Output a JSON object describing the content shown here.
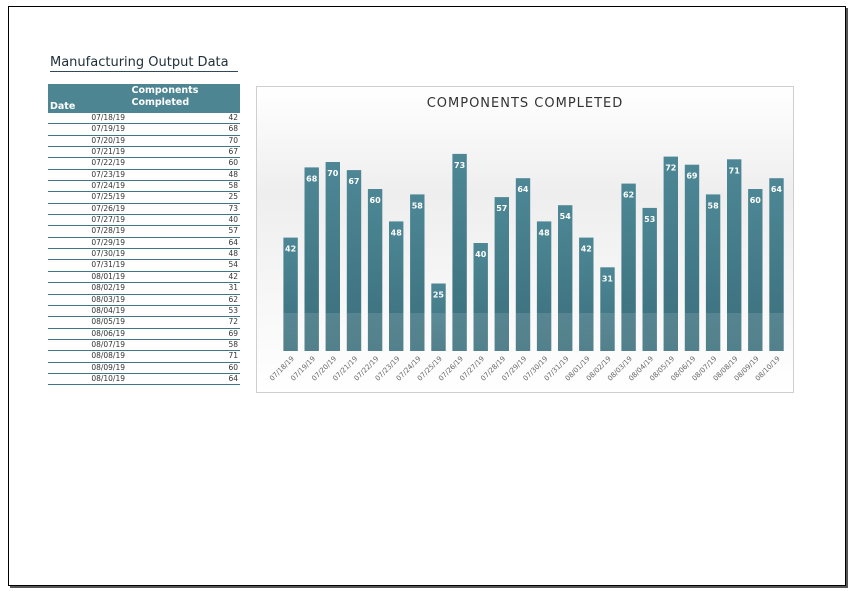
{
  "title": "Manufacturing Output Data",
  "table": {
    "headers": {
      "date": "Date",
      "components_line1": "Components",
      "components_line2": "Completed"
    },
    "rows": [
      {
        "date": "07/18/19",
        "value": "42"
      },
      {
        "date": "07/19/19",
        "value": "68"
      },
      {
        "date": "07/20/19",
        "value": "70"
      },
      {
        "date": "07/21/19",
        "value": "67"
      },
      {
        "date": "07/22/19",
        "value": "60"
      },
      {
        "date": "07/23/19",
        "value": "48"
      },
      {
        "date": "07/24/19",
        "value": "58"
      },
      {
        "date": "07/25/19",
        "value": "25"
      },
      {
        "date": "07/26/19",
        "value": "73"
      },
      {
        "date": "07/27/19",
        "value": "40"
      },
      {
        "date": "07/28/19",
        "value": "57"
      },
      {
        "date": "07/29/19",
        "value": "64"
      },
      {
        "date": "07/30/19",
        "value": "48"
      },
      {
        "date": "07/31/19",
        "value": "54"
      },
      {
        "date": "08/01/19",
        "value": "42"
      },
      {
        "date": "08/02/19",
        "value": "31"
      },
      {
        "date": "08/03/19",
        "value": "62"
      },
      {
        "date": "08/04/19",
        "value": "53"
      },
      {
        "date": "08/05/19",
        "value": "72"
      },
      {
        "date": "08/06/19",
        "value": "69"
      },
      {
        "date": "08/07/19",
        "value": "58"
      },
      {
        "date": "08/08/19",
        "value": "71"
      },
      {
        "date": "08/09/19",
        "value": "60"
      },
      {
        "date": "08/10/19",
        "value": "64"
      }
    ]
  },
  "chart_data": {
    "type": "bar",
    "title": "COMPONENTS COMPLETED",
    "categories": [
      "07/18/19",
      "07/19/19",
      "07/20/19",
      "07/21/19",
      "07/22/19",
      "07/23/19",
      "07/24/19",
      "07/25/19",
      "07/26/19",
      "07/27/19",
      "07/28/19",
      "07/29/19",
      "07/30/19",
      "07/31/19",
      "08/01/19",
      "08/02/19",
      "08/03/19",
      "08/04/19",
      "08/05/19",
      "08/06/19",
      "08/07/19",
      "08/08/19",
      "08/09/19",
      "08/10/19"
    ],
    "values": [
      42,
      68,
      70,
      67,
      60,
      48,
      58,
      25,
      73,
      40,
      57,
      64,
      48,
      54,
      42,
      31,
      62,
      53,
      72,
      69,
      58,
      71,
      60,
      64
    ],
    "xlabel": "",
    "ylabel": "",
    "ylim": [
      0,
      80
    ],
    "grid": false,
    "legend": "none",
    "bar_color": "#4a8290",
    "bar_color_dark": "#3a6f7c",
    "label_color": "#ffffff"
  }
}
